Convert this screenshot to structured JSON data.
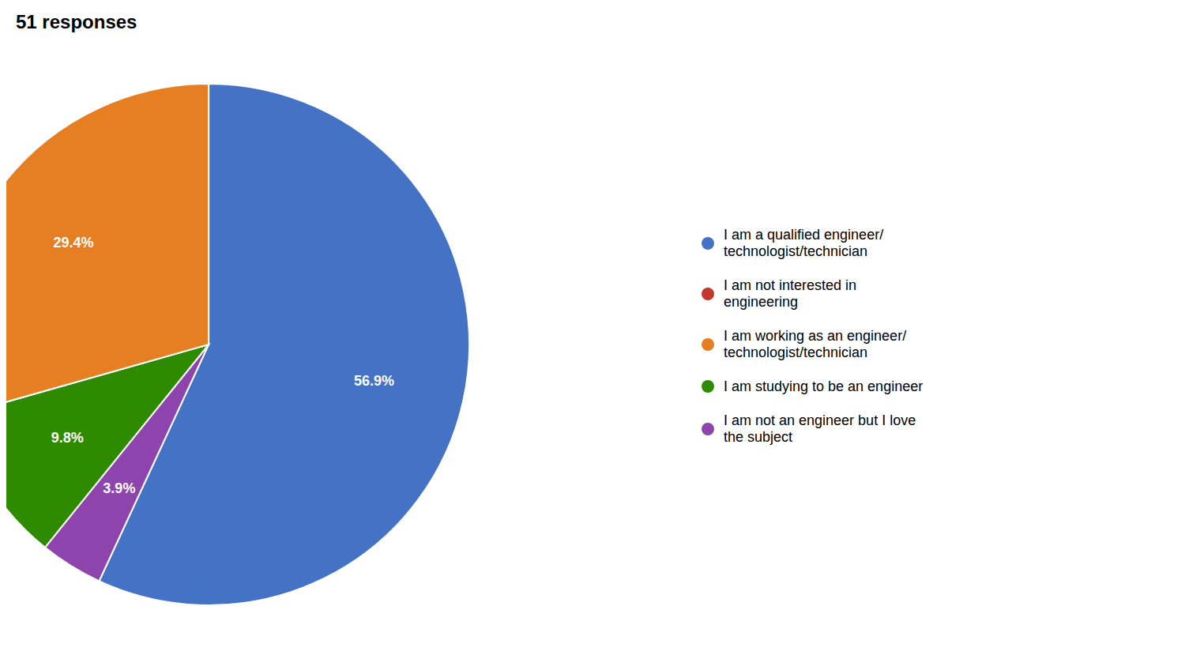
{
  "chart_data": {
    "type": "pie",
    "title": "51 responses",
    "categories": [
      "I am a qualified engineer/\ntechnologist/technician",
      "I am not interested in\nengineering",
      "I am not an engineer but I love\nthe subject",
      "I am studying to be an engineer",
      "I am working as an engineer/\ntechnologist/technician"
    ],
    "values": [
      56.9,
      0.0,
      3.9,
      9.8,
      29.4
    ],
    "value_labels": [
      "56.9%",
      null,
      "3.9%",
      "9.8%",
      "29.4%"
    ],
    "colors": [
      "#4472C4",
      "#C0392B",
      "#8E44AD",
      "#2E8B00",
      "#E67E22"
    ],
    "data_labels": true,
    "legend": "right",
    "legend_items": [
      {
        "label": "I am a qualified engineer/\ntechnologist/technician",
        "color": "#4472C4"
      },
      {
        "label": "I am not interested in\nengineering",
        "color": "#C0392B"
      },
      {
        "label": "I am working as an engineer/\ntechnologist/technician",
        "color": "#E67E22"
      },
      {
        "label": "I am studying to be an engineer",
        "color": "#2E8B00"
      },
      {
        "label": "I am not an engineer but I love\nthe subject",
        "color": "#8E44AD"
      }
    ]
  }
}
